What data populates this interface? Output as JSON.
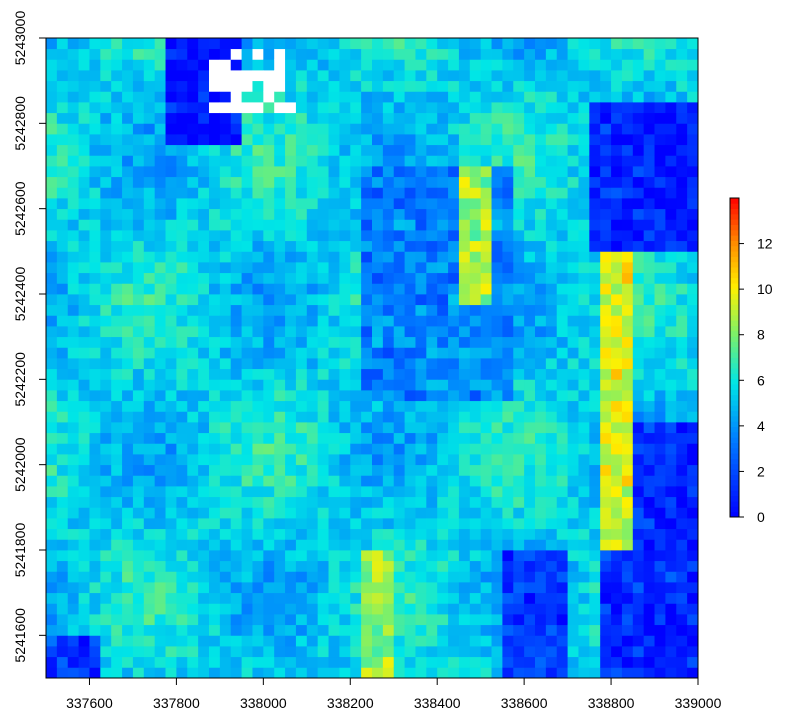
{
  "chart_data": {
    "type": "heatmap",
    "title": "",
    "xlabel": "",
    "ylabel": "",
    "xlim": [
      337500,
      339000
    ],
    "ylim": [
      5241500,
      5243000
    ],
    "x_ticks": [
      {
        "value": 337600,
        "label": "337600"
      },
      {
        "value": 337800,
        "label": "337800"
      },
      {
        "value": 338000,
        "label": "338000"
      },
      {
        "value": 338200,
        "label": "338200"
      },
      {
        "value": 338400,
        "label": "338400"
      },
      {
        "value": 338600,
        "label": "338600"
      },
      {
        "value": 338800,
        "label": "338800"
      },
      {
        "value": 339000,
        "label": "339000"
      }
    ],
    "y_ticks": [
      {
        "value": 5241600,
        "label": "5241600"
      },
      {
        "value": 5241800,
        "label": "5241800"
      },
      {
        "value": 5242000,
        "label": "5242000"
      },
      {
        "value": 5242200,
        "label": "5242200"
      },
      {
        "value": 5242400,
        "label": "5242400"
      },
      {
        "value": 5242600,
        "label": "5242600"
      },
      {
        "value": 5242800,
        "label": "5242800"
      },
      {
        "value": 5243000,
        "label": "5243000"
      }
    ],
    "colorbar": {
      "range": [
        0,
        14
      ],
      "ticks": [
        {
          "value": 0,
          "label": "0"
        },
        {
          "value": 2,
          "label": "2"
        },
        {
          "value": 4,
          "label": "4"
        },
        {
          "value": 6,
          "label": "6"
        },
        {
          "value": 8,
          "label": "8"
        },
        {
          "value": 10,
          "label": "10"
        },
        {
          "value": 12,
          "label": "12"
        }
      ]
    },
    "grid": false,
    "legend": "colorbar-right",
    "raster_resolution_m": 25,
    "features": [
      {
        "kind": "nodata",
        "x": [
          337880,
          338070
        ],
        "y": [
          5242830,
          5242980
        ],
        "value": null
      },
      {
        "kind": "low",
        "x": [
          337780,
          337950
        ],
        "y": [
          5242750,
          5243000
        ],
        "value": 0.5
      },
      {
        "kind": "low",
        "x": [
          338740,
          339000
        ],
        "y": [
          5242500,
          5242850
        ],
        "value": 0.8
      },
      {
        "kind": "low",
        "x": [
          338780,
          339000
        ],
        "y": [
          5241500,
          5242100
        ],
        "value": 1.0
      },
      {
        "kind": "low",
        "x": [
          338560,
          338700
        ],
        "y": [
          5241500,
          5241800
        ],
        "value": 1.5
      },
      {
        "kind": "low",
        "x": [
          337500,
          337620
        ],
        "y": [
          5241500,
          5241600
        ],
        "value": 1.5
      },
      {
        "kind": "low",
        "x": [
          338220,
          338580
        ],
        "y": [
          5242150,
          5242700
        ],
        "value": 3.5
      },
      {
        "kind": "high",
        "x": [
          338780,
          338860
        ],
        "y": [
          5241800,
          5242500
        ],
        "value": 9.5
      },
      {
        "kind": "high",
        "x": [
          338230,
          338300
        ],
        "y": [
          5241500,
          5241800
        ],
        "value": 8.5
      },
      {
        "kind": "high",
        "x": [
          338440,
          338520
        ],
        "y": [
          5242380,
          5242700
        ],
        "value": 8.5
      }
    ]
  }
}
